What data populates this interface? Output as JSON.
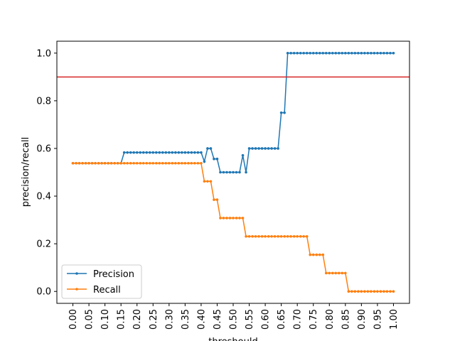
{
  "chart_data": {
    "type": "line",
    "xlabel": "threshould",
    "ylabel": "precision/recall",
    "xlim": [
      -0.05,
      1.05
    ],
    "ylim": [
      -0.05,
      1.05
    ],
    "xticks": [
      "0.00",
      "0.05",
      "0.10",
      "0.15",
      "0.20",
      "0.25",
      "0.30",
      "0.35",
      "0.40",
      "0.45",
      "0.50",
      "0.55",
      "0.60",
      "0.65",
      "0.70",
      "0.75",
      "0.80",
      "0.85",
      "0.90",
      "0.95",
      "1.00"
    ],
    "yticks": [
      "0.0",
      "0.2",
      "0.4",
      "0.6",
      "0.8",
      "1.0"
    ],
    "hline": {
      "y": 0.9,
      "color": "#d62728"
    },
    "legend": {
      "position": "lower left"
    },
    "x": [
      0.0,
      0.01,
      0.02,
      0.03,
      0.04,
      0.05,
      0.06,
      0.07,
      0.08,
      0.09,
      0.1,
      0.11,
      0.12,
      0.13,
      0.14,
      0.15,
      0.16,
      0.17,
      0.18,
      0.19,
      0.2,
      0.21,
      0.22,
      0.23,
      0.24,
      0.25,
      0.26,
      0.27,
      0.28,
      0.29,
      0.3,
      0.31,
      0.32,
      0.33,
      0.34,
      0.35,
      0.36,
      0.37,
      0.38,
      0.39,
      0.4,
      0.41,
      0.42,
      0.43,
      0.44,
      0.45,
      0.46,
      0.47,
      0.48,
      0.49,
      0.5,
      0.51,
      0.52,
      0.53,
      0.54,
      0.55,
      0.56,
      0.57,
      0.58,
      0.59,
      0.6,
      0.61,
      0.62,
      0.63,
      0.64,
      0.65,
      0.66,
      0.67,
      0.68,
      0.69,
      0.7,
      0.71,
      0.72,
      0.73,
      0.74,
      0.75,
      0.76,
      0.77,
      0.78,
      0.79,
      0.8,
      0.81,
      0.82,
      0.83,
      0.84,
      0.85,
      0.86,
      0.87,
      0.88,
      0.89,
      0.9,
      0.91,
      0.92,
      0.93,
      0.94,
      0.95,
      0.96,
      0.97,
      0.98,
      0.99,
      1.0
    ],
    "series": [
      {
        "name": "Precision",
        "color": "#1f77b4",
        "values": [
          0.538,
          0.538,
          0.538,
          0.538,
          0.538,
          0.538,
          0.538,
          0.538,
          0.538,
          0.538,
          0.538,
          0.538,
          0.538,
          0.538,
          0.538,
          0.538,
          0.583,
          0.583,
          0.583,
          0.583,
          0.583,
          0.583,
          0.583,
          0.583,
          0.583,
          0.583,
          0.583,
          0.583,
          0.583,
          0.583,
          0.583,
          0.583,
          0.583,
          0.583,
          0.583,
          0.583,
          0.583,
          0.583,
          0.583,
          0.583,
          0.583,
          0.545,
          0.6,
          0.6,
          0.556,
          0.556,
          0.5,
          0.5,
          0.5,
          0.5,
          0.5,
          0.5,
          0.5,
          0.571,
          0.5,
          0.6,
          0.6,
          0.6,
          0.6,
          0.6,
          0.6,
          0.6,
          0.6,
          0.6,
          0.6,
          0.75,
          0.75,
          1.0,
          1.0,
          1.0,
          1.0,
          1.0,
          1.0,
          1.0,
          1.0,
          1.0,
          1.0,
          1.0,
          1.0,
          1.0,
          1.0,
          1.0,
          1.0,
          1.0,
          1.0,
          1.0,
          1.0,
          1.0,
          1.0,
          1.0,
          1.0,
          1.0,
          1.0,
          1.0,
          1.0,
          1.0,
          1.0,
          1.0,
          1.0,
          1.0,
          1.0
        ]
      },
      {
        "name": "Recall",
        "color": "#ff7f0e",
        "values": [
          0.538,
          0.538,
          0.538,
          0.538,
          0.538,
          0.538,
          0.538,
          0.538,
          0.538,
          0.538,
          0.538,
          0.538,
          0.538,
          0.538,
          0.538,
          0.538,
          0.538,
          0.538,
          0.538,
          0.538,
          0.538,
          0.538,
          0.538,
          0.538,
          0.538,
          0.538,
          0.538,
          0.538,
          0.538,
          0.538,
          0.538,
          0.538,
          0.538,
          0.538,
          0.538,
          0.538,
          0.538,
          0.538,
          0.538,
          0.538,
          0.538,
          0.462,
          0.462,
          0.462,
          0.385,
          0.385,
          0.308,
          0.308,
          0.308,
          0.308,
          0.308,
          0.308,
          0.308,
          0.308,
          0.231,
          0.231,
          0.231,
          0.231,
          0.231,
          0.231,
          0.231,
          0.231,
          0.231,
          0.231,
          0.231,
          0.231,
          0.231,
          0.231,
          0.231,
          0.231,
          0.231,
          0.231,
          0.231,
          0.231,
          0.154,
          0.154,
          0.154,
          0.154,
          0.154,
          0.077,
          0.077,
          0.077,
          0.077,
          0.077,
          0.077,
          0.077,
          0.0,
          0.0,
          0.0,
          0.0,
          0.0,
          0.0,
          0.0,
          0.0,
          0.0,
          0.0,
          0.0,
          0.0,
          0.0,
          0.0,
          0.0
        ]
      }
    ]
  }
}
